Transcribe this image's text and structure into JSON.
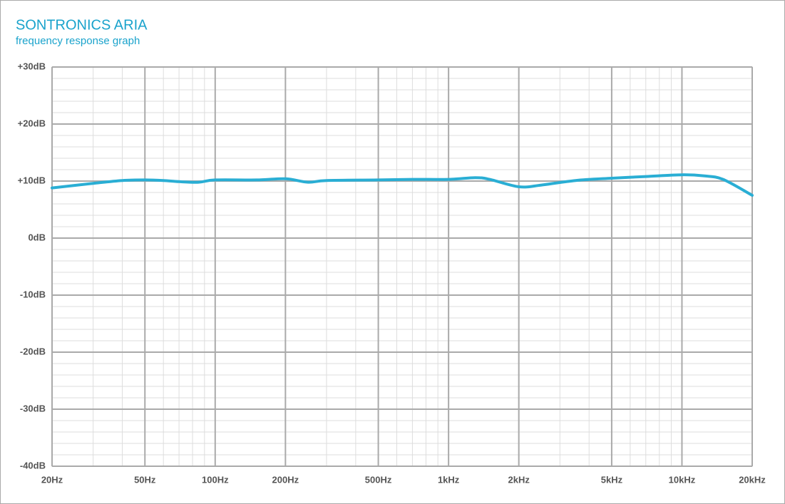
{
  "chart_data": {
    "type": "line",
    "title": "SONTRONICS ARIA",
    "subtitle": "frequency response graph",
    "x": [
      20,
      30,
      40,
      50,
      60,
      70,
      85,
      100,
      150,
      200,
      250,
      300,
      500,
      700,
      1000,
      1300,
      1500,
      2000,
      2500,
      3500,
      5000,
      7000,
      10000,
      12500,
      15000,
      20000
    ],
    "series": [
      {
        "name": "Sontronics Aria",
        "color": "#2aaed4",
        "values": [
          8.8,
          9.6,
          10.1,
          10.2,
          10.1,
          9.9,
          9.8,
          10.2,
          10.2,
          10.4,
          9.8,
          10.1,
          10.2,
          10.3,
          10.3,
          10.6,
          10.3,
          9.0,
          9.3,
          10.1,
          10.5,
          10.8,
          11.1,
          10.9,
          10.3,
          7.5
        ]
      }
    ],
    "xlim": [
      20,
      20000
    ],
    "xscale": "log",
    "xticks": [
      {
        "value": 20,
        "label": "20Hz"
      },
      {
        "value": 50,
        "label": "50Hz"
      },
      {
        "value": 100,
        "label": "100Hz"
      },
      {
        "value": 200,
        "label": "200Hz"
      },
      {
        "value": 500,
        "label": "500Hz"
      },
      {
        "value": 1000,
        "label": "1kHz"
      },
      {
        "value": 2000,
        "label": "2kHz"
      },
      {
        "value": 5000,
        "label": "5kHz"
      },
      {
        "value": 10000,
        "label": "10kHz"
      },
      {
        "value": 20000,
        "label": "20kHz"
      }
    ],
    "ylim": [
      -40,
      30
    ],
    "yticks": [
      {
        "value": -40,
        "label": "-40dB"
      },
      {
        "value": -30,
        "label": "-30dB"
      },
      {
        "value": -20,
        "label": "-20dB"
      },
      {
        "value": -10,
        "label": "-10dB"
      },
      {
        "value": 0,
        "label": "0dB"
      },
      {
        "value": 10,
        "label": "+10dB"
      },
      {
        "value": 20,
        "label": "+20dB"
      },
      {
        "value": 30,
        "label": "+30dB"
      }
    ],
    "grid": true
  }
}
